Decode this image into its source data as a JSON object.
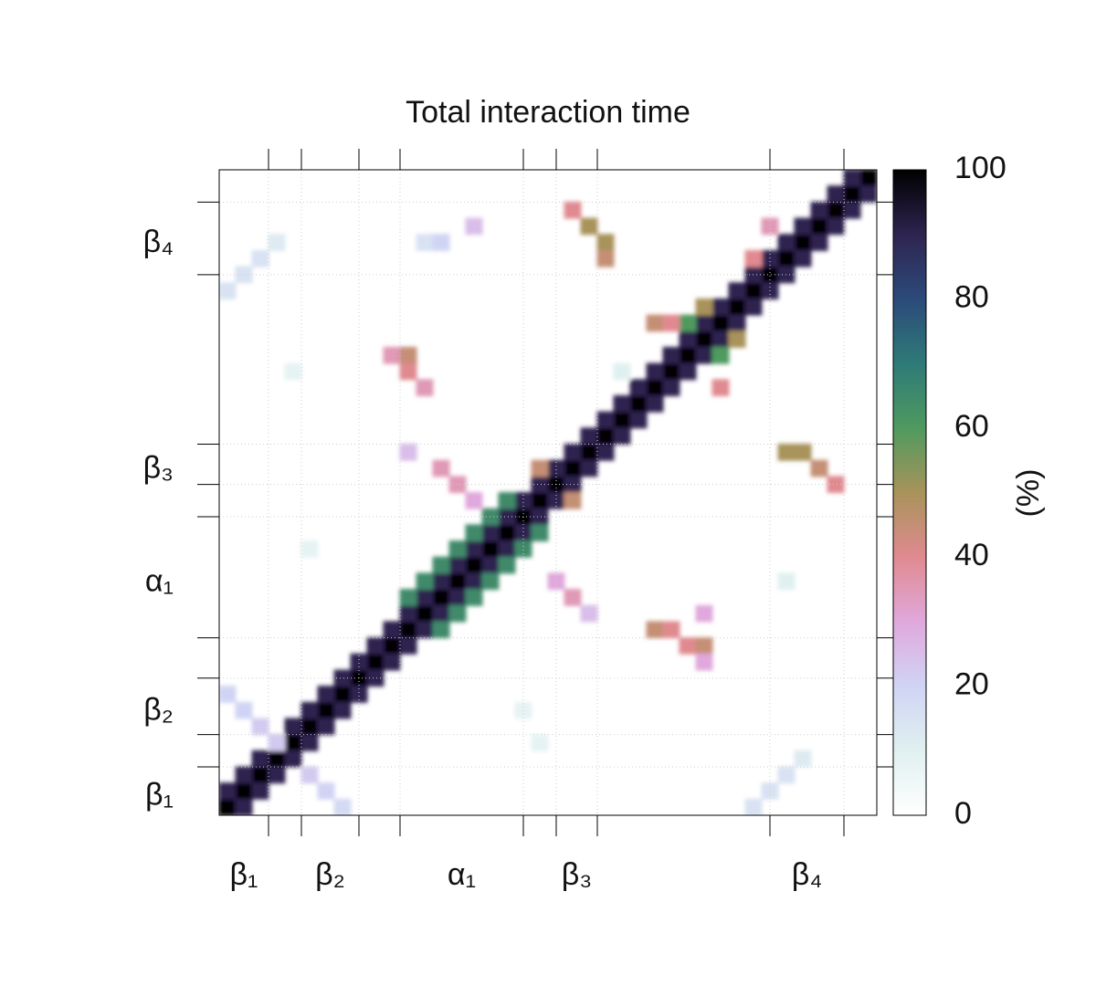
{
  "chart_data": {
    "type": "heatmap",
    "title": "Total interaction time",
    "xlim": [
      0.5,
      40.5
    ],
    "ylim": [
      0.5,
      40.5
    ],
    "segments": [
      {
        "label": "β₁",
        "start": 0.5,
        "end": 3.5
      },
      {
        "label": "β₂",
        "start": 5.5,
        "end": 9
      },
      {
        "label": "α₁",
        "start": 11.5,
        "end": 19
      },
      {
        "label": "β₃",
        "start": 21,
        "end": 23.5
      },
      {
        "label": "β₄",
        "start": 34,
        "end": 38.5
      }
    ],
    "grid": true,
    "x": [
      1,
      2,
      3,
      4,
      5,
      6,
      7,
      8,
      9,
      10,
      11,
      12,
      13,
      14,
      15,
      16,
      17,
      18,
      19,
      20,
      21,
      22,
      23,
      24,
      25,
      26,
      27,
      28,
      29,
      30,
      31,
      32,
      33,
      34,
      35,
      36,
      37,
      38,
      39,
      40,
      1,
      2,
      3,
      4,
      5,
      6,
      7,
      8,
      9,
      10,
      11,
      12,
      13,
      14,
      15,
      16,
      17,
      18,
      19,
      20,
      21,
      22,
      23,
      24,
      25,
      26,
      27,
      28,
      29,
      30,
      31,
      32,
      33,
      34,
      35,
      36,
      37,
      38,
      39,
      2,
      3,
      4,
      5,
      6,
      7,
      8,
      9,
      10,
      11,
      12,
      13,
      14,
      15,
      16,
      17,
      18,
      19,
      20,
      21,
      22,
      23,
      24,
      25,
      26,
      27,
      28,
      29,
      30,
      31,
      32,
      33,
      34,
      35,
      36,
      37,
      38,
      39,
      40,
      12,
      13,
      14,
      15,
      16,
      17,
      18,
      14,
      15,
      16,
      17,
      18,
      19,
      20,
      22,
      23,
      24,
      24,
      35,
      36,
      37,
      38,
      11,
      12,
      12,
      13,
      27,
      28,
      29,
      30,
      30,
      1,
      2,
      3,
      4,
      33,
      34,
      35,
      36,
      1,
      2,
      3,
      4,
      6,
      7,
      8,
      29,
      31,
      30,
      32,
      33,
      34,
      20,
      22,
      13,
      14,
      16,
      12,
      14,
      15,
      16,
      21,
      22,
      23,
      27,
      28,
      31,
      30,
      5,
      25,
      19,
      20,
      35,
      6
    ],
    "y": [
      1,
      2,
      3,
      4,
      5,
      6,
      7,
      8,
      9,
      10,
      11,
      12,
      13,
      14,
      15,
      16,
      17,
      18,
      19,
      20,
      21,
      22,
      23,
      24,
      25,
      26,
      27,
      28,
      29,
      30,
      31,
      32,
      33,
      34,
      35,
      36,
      37,
      38,
      39,
      40,
      2,
      3,
      4,
      5,
      6,
      7,
      8,
      9,
      10,
      11,
      12,
      13,
      14,
      15,
      16,
      17,
      18,
      19,
      20,
      21,
      22,
      23,
      24,
      25,
      26,
      27,
      28,
      29,
      30,
      31,
      32,
      33,
      34,
      35,
      36,
      37,
      38,
      39,
      40,
      1,
      2,
      3,
      4,
      5,
      6,
      7,
      8,
      9,
      10,
      11,
      12,
      13,
      14,
      15,
      16,
      17,
      18,
      19,
      20,
      21,
      22,
      23,
      24,
      25,
      26,
      27,
      28,
      29,
      30,
      31,
      32,
      33,
      34,
      35,
      36,
      37,
      38,
      39,
      14,
      15,
      16,
      17,
      18,
      19,
      20,
      12,
      13,
      14,
      15,
      16,
      17,
      18,
      38,
      37,
      36,
      35,
      23,
      23,
      22,
      21,
      29,
      29,
      28,
      27,
      12,
      12,
      11,
      11,
      10,
      33,
      34,
      35,
      36,
      1,
      2,
      3,
      4,
      8,
      7,
      6,
      5,
      3,
      2,
      1,
      31,
      29,
      32,
      30,
      35,
      37,
      22,
      20,
      36,
      36,
      37,
      23,
      22,
      21,
      20,
      15,
      14,
      13,
      31,
      31,
      27,
      13,
      28,
      28,
      7,
      5,
      15,
      17
    ],
    "values": [
      100,
      100,
      100,
      100,
      100,
      100,
      100,
      100,
      100,
      100,
      100,
      100,
      100,
      100,
      100,
      100,
      100,
      100,
      100,
      100,
      100,
      100,
      100,
      100,
      100,
      100,
      100,
      100,
      100,
      100,
      100,
      100,
      100,
      100,
      100,
      100,
      100,
      100,
      100,
      100,
      90,
      90,
      90,
      90,
      90,
      90,
      90,
      90,
      90,
      90,
      90,
      90,
      90,
      90,
      90,
      90,
      90,
      90,
      90,
      90,
      90,
      90,
      90,
      90,
      90,
      90,
      90,
      90,
      90,
      90,
      90,
      90,
      90,
      90,
      90,
      90,
      90,
      90,
      90,
      90,
      90,
      90,
      90,
      90,
      90,
      90,
      90,
      90,
      90,
      90,
      90,
      90,
      90,
      90,
      90,
      90,
      90,
      90,
      90,
      90,
      90,
      90,
      90,
      90,
      90,
      90,
      90,
      90,
      90,
      90,
      90,
      90,
      90,
      90,
      90,
      90,
      90,
      90,
      65,
      65,
      65,
      65,
      65,
      65,
      65,
      65,
      65,
      65,
      65,
      65,
      65,
      65,
      40,
      50,
      50,
      45,
      50,
      50,
      45,
      40,
      35,
      45,
      40,
      35,
      45,
      40,
      40,
      45,
      30,
      15,
      15,
      15,
      12,
      15,
      15,
      15,
      12,
      20,
      20,
      22,
      22,
      22,
      20,
      18,
      60,
      60,
      50,
      50,
      40,
      35,
      45,
      45,
      15,
      20,
      25,
      25,
      35,
      35,
      30,
      30,
      35,
      25,
      45,
      40,
      40,
      30,
      8,
      10,
      8,
      8,
      10,
      8
    ],
    "zlim": [
      0,
      100
    ],
    "zticks": [
      0,
      20,
      40,
      60,
      80,
      100
    ],
    "colorbar_label": "(%)",
    "colors": [
      "#ffffff",
      "#e0f0f0",
      "#d0d4f4",
      "#e0a8dc",
      "#e08a90",
      "#a8935a",
      "#4f9a5e",
      "#2e7a78",
      "#2c4a7a",
      "#2e2450",
      "#000000"
    ]
  }
}
